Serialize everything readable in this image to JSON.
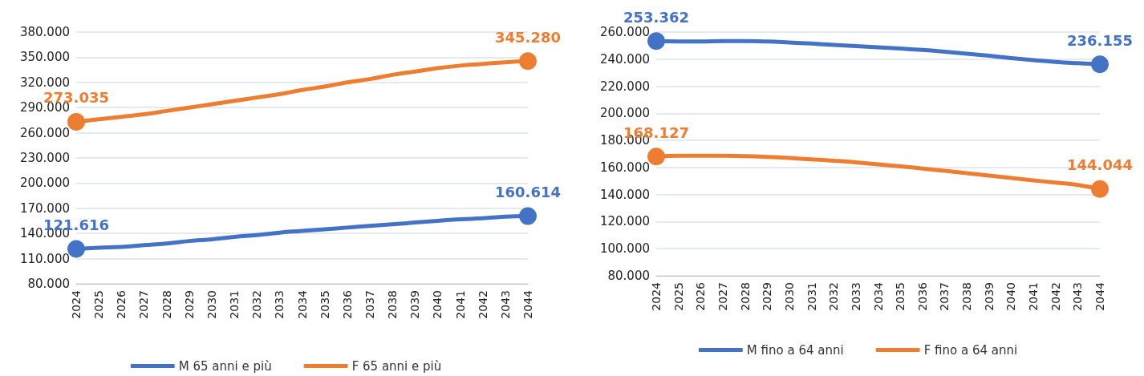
{
  "chart_data": [
    {
      "type": "line",
      "categories": [
        "2024",
        "2025",
        "2026",
        "2027",
        "2028",
        "2029",
        "2030",
        "2031",
        "2032",
        "2033",
        "2034",
        "2035",
        "2036",
        "2037",
        "2038",
        "2039",
        "2040",
        "2041",
        "2042",
        "2043",
        "2044"
      ],
      "series": [
        {
          "name": "M 65 anni e più",
          "color": "#4472c4",
          "values": [
            121616,
            123000,
            124000,
            126000,
            128000,
            131000,
            133000,
            136000,
            138000,
            141000,
            143000,
            145000,
            147000,
            149000,
            151000,
            153000,
            155000,
            157000,
            158000,
            160000,
            160614
          ],
          "value_labels": [
            "121.616",
            null,
            null,
            null,
            null,
            null,
            null,
            null,
            null,
            null,
            null,
            null,
            null,
            null,
            null,
            null,
            null,
            null,
            null,
            null,
            "160.614"
          ]
        },
        {
          "name": "F 65 anni e più",
          "color": "#ed7d31",
          "values": [
            273035,
            276000,
            279000,
            282000,
            286000,
            290000,
            294000,
            298000,
            302000,
            306000,
            311000,
            315000,
            320000,
            324000,
            329000,
            333000,
            337000,
            340000,
            342000,
            344000,
            345280
          ],
          "value_labels": [
            "273.035",
            null,
            null,
            null,
            null,
            null,
            null,
            null,
            null,
            null,
            null,
            null,
            null,
            null,
            null,
            null,
            null,
            null,
            null,
            null,
            "345.280"
          ]
        }
      ],
      "ylim": [
        80000,
        380000
      ],
      "yticks": [
        {
          "value": 80000,
          "label": "80.000"
        },
        {
          "value": 110000,
          "label": "110.000"
        },
        {
          "value": 140000,
          "label": "140.000"
        },
        {
          "value": 170000,
          "label": "170.000"
        },
        {
          "value": 200000,
          "label": "200.000"
        },
        {
          "value": 230000,
          "label": "230.000"
        },
        {
          "value": 260000,
          "label": "260.000"
        },
        {
          "value": 290000,
          "label": "290.000"
        },
        {
          "value": 320000,
          "label": "320.000"
        },
        {
          "value": 350000,
          "label": "350.000"
        },
        {
          "value": 380000,
          "label": "380.000"
        }
      ],
      "grid": "y",
      "legend": "bottom",
      "line_style": "solid"
    },
    {
      "type": "line",
      "categories": [
        "2024",
        "2025",
        "2026",
        "2027",
        "2028",
        "2029",
        "2030",
        "2031",
        "2032",
        "2033",
        "2034",
        "2035",
        "2036",
        "2037",
        "2038",
        "2039",
        "2040",
        "2041",
        "2042",
        "2043",
        "2044"
      ],
      "series": [
        {
          "name": "M fino a 64 anni",
          "color": "#4472c4",
          "values": [
            253362,
            253100,
            253100,
            253400,
            253400,
            253000,
            252300,
            251500,
            250500,
            249600,
            248700,
            247800,
            246800,
            245500,
            244000,
            242500,
            240800,
            239300,
            238000,
            237000,
            236155
          ],
          "value_labels": [
            "253.362",
            null,
            null,
            null,
            null,
            null,
            null,
            null,
            null,
            null,
            null,
            null,
            null,
            null,
            null,
            null,
            null,
            null,
            null,
            null,
            "236.155"
          ]
        },
        {
          "name": "F fino a 64 anni",
          "color": "#ed7d31",
          "values": [
            168127,
            168600,
            168700,
            168700,
            168400,
            167800,
            167000,
            166000,
            165000,
            163800,
            162300,
            160800,
            159200,
            157500,
            155800,
            154000,
            152300,
            150500,
            148800,
            147000,
            144044
          ],
          "value_labels": [
            "168.127",
            null,
            null,
            null,
            null,
            null,
            null,
            null,
            null,
            null,
            null,
            null,
            null,
            null,
            null,
            null,
            null,
            null,
            null,
            null,
            "144.044"
          ]
        }
      ],
      "ylim": [
        80000,
        260000
      ],
      "yticks": [
        {
          "value": 80000,
          "label": "80.000"
        },
        {
          "value": 100000,
          "label": "100.000"
        },
        {
          "value": 120000,
          "label": "120.000"
        },
        {
          "value": 140000,
          "label": "140.000"
        },
        {
          "value": 160000,
          "label": "160.000"
        },
        {
          "value": 180000,
          "label": "180.000"
        },
        {
          "value": 200000,
          "label": "200.000"
        },
        {
          "value": 220000,
          "label": "220.000"
        },
        {
          "value": 240000,
          "label": "240.000"
        },
        {
          "value": 260000,
          "label": "260.000"
        }
      ],
      "grid": "y",
      "legend": "bottom",
      "line_style": "solid"
    }
  ]
}
